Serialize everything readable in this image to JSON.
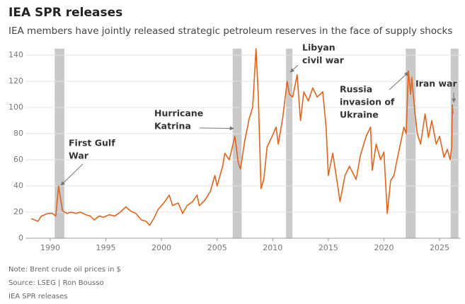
{
  "title": "IEA SPR releases",
  "subtitle": "IEA members have jointly released strategic petroleum reserves in the face of supply shocks",
  "footer": {
    "note": "Note: Brent crude oil prices in $",
    "source": "Source: LSEG | Ron Bousso",
    "credit": "IEA SPR releases"
  },
  "chart_data": {
    "type": "line",
    "x": [
      1988.3,
      1988.6,
      1988.9,
      1989.2,
      1989.5,
      1989.8,
      1990.2,
      1990.5,
      1990.75,
      1990.9,
      1991.1,
      1991.5,
      1991.9,
      1992.3,
      1992.7,
      1993.2,
      1993.6,
      1993.95,
      1994.4,
      1994.8,
      1995.3,
      1995.8,
      1996.3,
      1996.8,
      1997.2,
      1997.7,
      1998.2,
      1998.6,
      1998.95,
      1999.3,
      1999.7,
      2000.0,
      2000.3,
      2000.7,
      2001.0,
      2001.5,
      2001.9,
      2002.3,
      2002.8,
      2003.2,
      2003.4,
      2003.9,
      2004.4,
      2004.8,
      2005.0,
      2005.5,
      2005.7,
      2006.1,
      2006.6,
      2006.9,
      2007.1,
      2007.5,
      2007.9,
      2008.2,
      2008.5,
      2008.7,
      2008.95,
      2009.2,
      2009.5,
      2009.9,
      2010.3,
      2010.5,
      2010.9,
      2011.3,
      2011.5,
      2011.8,
      2012.2,
      2012.5,
      2012.8,
      2013.2,
      2013.6,
      2014.0,
      2014.5,
      2014.8,
      2015.0,
      2015.4,
      2015.9,
      2016.05,
      2016.5,
      2016.9,
      2017.5,
      2017.9,
      2018.4,
      2018.8,
      2018.95,
      2019.3,
      2019.7,
      2020.0,
      2020.3,
      2020.6,
      2020.9,
      2021.3,
      2021.8,
      2022.0,
      2022.2,
      2022.4,
      2022.5,
      2022.8,
      2023.0,
      2023.3,
      2023.7,
      2024.0,
      2024.3,
      2024.7,
      2025.0,
      2025.4,
      2025.7,
      2025.95,
      2026.1,
      2026.15,
      2026.2
    ],
    "series": [
      {
        "color": "#e2631c",
        "values": [
          15,
          14,
          13,
          17,
          18,
          19,
          19,
          17,
          40,
          32,
          21,
          19,
          20,
          19,
          20,
          18,
          17,
          14,
          17,
          16,
          18,
          17,
          20,
          24,
          21,
          19,
          14,
          13,
          10,
          15,
          22,
          25,
          28,
          33,
          25,
          27,
          19,
          25,
          28,
          33,
          25,
          29,
          36,
          48,
          40,
          55,
          65,
          60,
          78,
          58,
          53,
          75,
          92,
          100,
          145,
          110,
          38,
          45,
          70,
          77,
          85,
          72,
          92,
          120,
          110,
          108,
          125,
          90,
          112,
          105,
          115,
          108,
          112,
          85,
          48,
          65,
          37,
          28,
          48,
          55,
          45,
          64,
          78,
          85,
          52,
          72,
          60,
          66,
          19,
          44,
          48,
          65,
          85,
          80,
          128,
          110,
          123,
          95,
          80,
          72,
          95,
          77,
          90,
          72,
          78,
          62,
          68,
          60,
          70,
          102,
          95
        ]
      }
    ],
    "xlim": [
      1987.8,
      2026.9
    ],
    "ylim": [
      0,
      145
    ],
    "xticks": [
      1990,
      1995,
      2000,
      2005,
      2010,
      2015,
      2020,
      2025
    ],
    "yticks": [
      0,
      20,
      40,
      60,
      80,
      100,
      120,
      140
    ],
    "grid": true,
    "band_color": "#c9c9c9",
    "releases": [
      {
        "start": 1990.4,
        "end": 1991.27
      },
      {
        "start": 2006.4,
        "end": 2007.2
      },
      {
        "start": 2011.2,
        "end": 2011.77
      },
      {
        "start": 2021.96,
        "end": 2022.85
      },
      {
        "start": 2026.0,
        "end": 2026.7
      }
    ],
    "annotations": [
      {
        "lines": [
          "First Gulf",
          "War"
        ],
        "x": 1990.96,
        "y": 40.5
      },
      {
        "lines": [
          "Hurricane",
          "Katrina"
        ],
        "x": 2006.49,
        "y": 84
      },
      {
        "lines": [
          "Libyan",
          "civil war"
        ],
        "x": 2011.58,
        "y": 127
      },
      {
        "lines": [
          "Russia",
          "invasion of",
          "Ukraine"
        ],
        "x": 2022.2,
        "y": 127
      },
      {
        "lines": [
          "Iran war"
        ],
        "x": 2026.29,
        "y": 104
      }
    ]
  }
}
